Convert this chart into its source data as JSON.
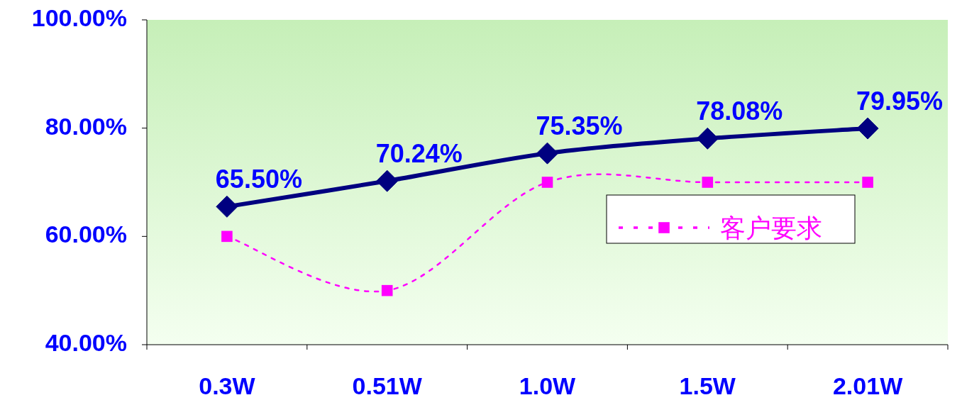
{
  "chart_data": {
    "type": "line",
    "categories": [
      "0.3W",
      "0.51W",
      "1.0W",
      "1.5W",
      "2.01W"
    ],
    "series": [
      {
        "color": "#000080",
        "values": [
          65.5,
          70.24,
          75.35,
          78.08,
          79.95
        ],
        "marker": "diamond",
        "line_style": "solid",
        "value_labels": [
          "65.50%",
          "70.24%",
          "75.35%",
          "78.08%",
          "79.95%"
        ]
      },
      {
        "name": "客户要求",
        "color": "#ff00ff",
        "values": [
          60,
          50,
          70,
          70,
          70
        ],
        "marker": "square",
        "line_style": "dotted"
      }
    ],
    "ylim": [
      40,
      100
    ],
    "yticks": [
      {
        "value": 40,
        "label": "40.00%"
      },
      {
        "value": 60,
        "label": "60.00%"
      },
      {
        "value": 80,
        "label": "80.00%"
      },
      {
        "value": 100,
        "label": "100.00%"
      }
    ],
    "grid": false,
    "legend": "right"
  }
}
